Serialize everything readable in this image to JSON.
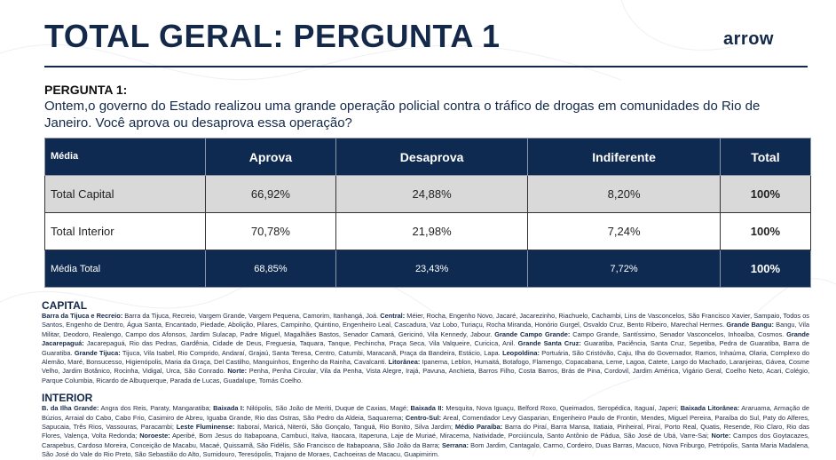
{
  "header": {
    "title": "TOTAL GERAL: PERGUNTA 1",
    "logo": "arrow"
  },
  "question": {
    "label": "PERGUNTA 1:",
    "text": "Ontem,o governo do Estado realizou uma grande operação policial contra o tráfico de drogas em comunidades do Rio de Janeiro. Você aprova ou desaprova essa operação?"
  },
  "table": {
    "headers": [
      "Média",
      "Aprova",
      "Desaprova",
      "Indiferente",
      "Total"
    ],
    "rows": [
      [
        "Total Capital",
        "66,92%",
        "24,88%",
        "8,20%",
        "100%"
      ],
      [
        "Total Interior",
        "70,78%",
        "21,98%",
        "7,24%",
        "100%"
      ],
      [
        "Média Total",
        "68,85%",
        "23,43%",
        "7,72%",
        "100%"
      ]
    ]
  },
  "capital": {
    "title": "CAPITAL",
    "groups": [
      {
        "label": "Barra da Tijuca e Recreio:",
        "text": " Barra da Tijuca, Recreio, Vargem Grande, Vargem Pequena, Camorim, Itanhangá, Joá. "
      },
      {
        "label": "Central:",
        "text": " Méier, Rocha, Engenho Novo, Jacaré, Jacarezinho, Riachuelo, Cachambi, Lins de Vasconcelos, São Francisco Xavier, Sampaio, Todos os Santos, Engenho de Dentro, Água Santa, Encantado, Piedade, Abolição, Pilares, Campinho, Quintino, Engenheiro Leal, Cascadura, Vaz Lobo, Turiaçu, Rocha Miranda, Honório Gurgel, Osvaldo Cruz, Bento Ribeiro, Marechal Hermes. "
      },
      {
        "label": "Grande Bangu:",
        "text": " Bangu, Vila Militar, Deodoro, Realengo, Campo dos Afonsos, Jardim Sulacap, Padre Miguel, Magalhães Bastos, Senador Camará, Gericinó, Vila Kennedy, Jabour. "
      },
      {
        "label": "Grande Campo Grande:",
        "text": " Campo Grande, Santíssimo, Senador Vasconcelos, Inhoaíba, Cosmos. "
      },
      {
        "label": "Grande Jacarepaguá:",
        "text": " Jacarepaguá, Rio das Pedras, Gardênia, Cidade de Deus, Freguesia, Taquara, Tanque, Pechincha, Praça Seca, Vila Valqueire, Curicica, Anil. "
      },
      {
        "label": "Grande Santa Cruz:",
        "text": " Guaratiba, Paciência, Santa Cruz, Sepetiba, Pedra de Guaratiba, Barra de Guaratiba. "
      },
      {
        "label": "Grande Tijuca:",
        "text": " Tijuca, Vila Isabel, Rio Comprido, Andaraí, Grajaú, Santa Teresa, Centro, Catumbi, Maracanã, Praça da Bandeira, Estácio, Lapa. "
      },
      {
        "label": "Leopoldina:",
        "text": " Portuária, São Cristóvão, Caju, Ilha do Governador, Ramos, Inhaúma, Olaria, Complexo do Alemão, Maré, Bonsucesso, Higienópolis, Maria da Graça, Del Castilho, Manguinhos, Engenho da Rainha, Cavalcanti. "
      },
      {
        "label": "Litorânea:",
        "text": " Ipanema, Leblon, Humaitá, Botafogo, Flamengo, Copacabana, Leme, Lagoa, Catete, Largo do Machado, Laranjeiras, Gávea, Cosme Velho, Jardim Botânico, Rocinha, Vidigal, Urca, São Conrado. "
      },
      {
        "label": "Norte:",
        "text": " Penha, Penha Circular, Vila da Penha, Vista Alegre, Irajá, Pavuna, Anchieta, Barros Filho, Costa Barros, Brás de Pina, Cordovil, Jardim América, Vigário Geral, Coelho Neto, Acari, Colégio, Parque Columbia, Ricardo de Albuquerque, Parada de Lucas, Guadalupe, Tomás Coelho."
      }
    ]
  },
  "interior": {
    "title": "INTERIOR",
    "groups": [
      {
        "label": "B. da Ilha Grande:",
        "text": " Angra dos Reis, Paraty, Mangaratiba; "
      },
      {
        "label": "Baixada I:",
        "text": " Nilópolis, São João de Meriti, Duque de Caxias, Magé; "
      },
      {
        "label": "Baixada II:",
        "text": " Mesquita, Nova Iguaçu, Belford Roxo, Queimados, Seropédica, Itaguaí, Japeri; "
      },
      {
        "label": "Baixada Litorânea:",
        "text": " Araruama, Armação de Búzios, Arraial do Cabo, Cabo Frio, Casimiro de Abreu, Iguaba Grande, Rio das Ostras, São Pedro da Aldeia, Saquarema; "
      },
      {
        "label": "Centro-Sul:",
        "text": " Areal, Comendador Levy Gasparian, Engenheiro Paulo de Frontin, Mendes, Miguel Pereira, Paraíba do Sul, Paty do Alferes, Sapucaia, Três Rios, Vassouras, Paracambi; "
      },
      {
        "label": "Leste Fluminense:",
        "text": " Itaboraí, Maricá, Niterói, São Gonçalo, Tanguá, Rio Bonito, Silva Jardim; "
      },
      {
        "label": "Médio Paraíba:",
        "text": " Barra do Piraí, Barra Mansa, Itatiaia, Pinheiral, Piraí, Porto Real, Quatis, Resende, Rio Claro, Rio das Flores, Valença, Volta Redonda; "
      },
      {
        "label": "Noroeste:",
        "text": " Aperibé, Bom Jesus do Itabapoana, Cambuci, Italva, Itaocara, Itaperuna, Laje de Muriaé, Miracema, Natividade, Porciúncula, Santo Antônio de Pádua, São José de Ubá, Varre-Sai; "
      },
      {
        "label": "Norte:",
        "text": " Campos dos Goytacazes, Carapebus, Cardoso Moreira, Conceição de Macabu, Macaé, Quissamã, São Fidélis, São Francisco de Itabapoana, São João da Barra; "
      },
      {
        "label": "Serrana:",
        "text": " Bom Jardim, Cantagalo, Carmo, Cordeiro, Duas Barras, Macuco, Nova Friburgo, Petrópolis, Santa Maria Madalena, São José do Vale do Rio Preto, São Sebastião do Alto, Sumidouro, Teresópolis, Trajano de Moraes, Cachoeiras de Macacu, Guapimirim."
      }
    ]
  }
}
